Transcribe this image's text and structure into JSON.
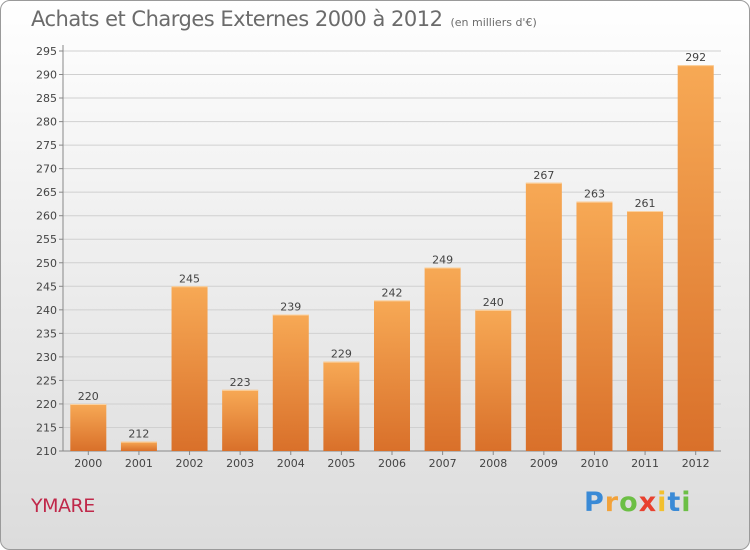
{
  "title": "Achats et Charges Externes 2000 à 2012",
  "subtitle": "(en milliers d'€)",
  "place": "YMARE",
  "logo": {
    "letters": [
      "P",
      "r",
      "o",
      "x",
      "i",
      "t",
      "i"
    ],
    "colors": [
      "#3a8ad6",
      "#f2a23a",
      "#6cbf45",
      "#e8412f",
      "#f2c02e",
      "#3a8ad6",
      "#6cbf45"
    ]
  },
  "colors": {
    "bar_top": "#f7a955",
    "bar_bottom": "#d9702a",
    "grid": "#d0d0d0",
    "axis": "#888888"
  },
  "chart_data": {
    "type": "bar",
    "categories": [
      "2000",
      "2001",
      "2002",
      "2003",
      "2004",
      "2005",
      "2006",
      "2007",
      "2008",
      "2009",
      "2010",
      "2011",
      "2012"
    ],
    "values": [
      220,
      212,
      245,
      223,
      239,
      229,
      242,
      249,
      240,
      267,
      263,
      261,
      292
    ],
    "ylim": [
      210,
      295
    ],
    "yticks": [
      210,
      215,
      220,
      225,
      230,
      235,
      240,
      245,
      250,
      255,
      260,
      265,
      270,
      275,
      280,
      285,
      290,
      295
    ],
    "grid": true
  }
}
